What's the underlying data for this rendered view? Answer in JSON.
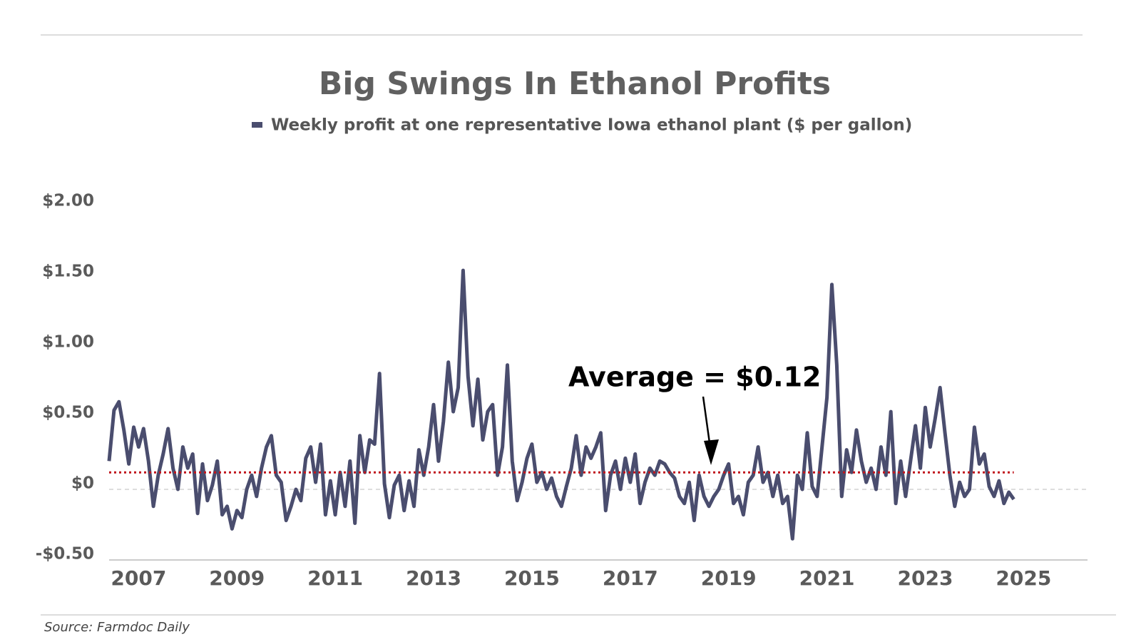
{
  "chart_data": {
    "type": "line",
    "title": "Big Swings In Ethanol Profits",
    "source": "Source: Farmdoc Daily",
    "annotation": "Average = $0.12",
    "average": 0.12,
    "average_color": "#c0141c",
    "series": [
      {
        "name": "Weekly profit at one representative Iowa ethanol plant ($ per gallon)",
        "color": "#4a4d6e",
        "values": [
          0.2,
          0.56,
          0.62,
          0.42,
          0.18,
          0.44,
          0.3,
          0.43,
          0.2,
          -0.12,
          0.1,
          0.25,
          0.43,
          0.15,
          0.0,
          0.3,
          0.15,
          0.25,
          -0.17,
          0.18,
          -0.08,
          0.03,
          0.2,
          -0.18,
          -0.12,
          -0.28,
          -0.15,
          -0.2,
          0.0,
          0.1,
          -0.05,
          0.15,
          0.3,
          0.38,
          0.1,
          0.05,
          -0.22,
          -0.12,
          0.0,
          -0.08,
          0.22,
          0.3,
          0.05,
          0.32,
          -0.18,
          0.06,
          -0.18,
          0.12,
          -0.12,
          0.2,
          -0.24,
          0.38,
          0.12,
          0.35,
          0.32,
          0.82,
          0.04,
          -0.2,
          0.03,
          0.1,
          -0.15,
          0.06,
          -0.12,
          0.28,
          0.1,
          0.3,
          0.6,
          0.2,
          0.48,
          0.9,
          0.55,
          0.72,
          1.55,
          0.8,
          0.45,
          0.78,
          0.35,
          0.55,
          0.6,
          0.1,
          0.3,
          0.88,
          0.2,
          -0.08,
          0.05,
          0.22,
          0.32,
          0.05,
          0.12,
          0.0,
          0.08,
          -0.05,
          -0.12,
          0.02,
          0.15,
          0.38,
          0.1,
          0.3,
          0.22,
          0.3,
          0.4,
          -0.15,
          0.1,
          0.2,
          0.0,
          0.22,
          0.05,
          0.25,
          -0.1,
          0.05,
          0.15,
          0.1,
          0.2,
          0.18,
          0.12,
          0.08,
          -0.05,
          -0.1,
          0.05,
          -0.22,
          0.1,
          -0.05,
          -0.12,
          -0.05,
          0.0,
          0.1,
          0.18,
          -0.1,
          -0.05,
          -0.18,
          0.05,
          0.1,
          0.3,
          0.05,
          0.12,
          -0.05,
          0.1,
          -0.1,
          -0.05,
          -0.35,
          0.1,
          0.0,
          0.4,
          0.02,
          -0.05,
          0.3,
          0.65,
          1.45,
          0.88,
          -0.05,
          0.28,
          0.12,
          0.42,
          0.2,
          0.05,
          0.15,
          0.0,
          0.3,
          0.1,
          0.55,
          -0.1,
          0.2,
          -0.05,
          0.2,
          0.45,
          0.15,
          0.58,
          0.3,
          0.5,
          0.72,
          0.4,
          0.1,
          -0.12,
          0.05,
          -0.05,
          0.0,
          0.44,
          0.18,
          0.25,
          0.02,
          -0.05,
          0.06,
          -0.1,
          -0.02,
          -0.07
        ]
      }
    ],
    "x": [
      2006.4,
      2006.5,
      2006.6,
      2006.7,
      2006.8,
      2006.9,
      2007.0,
      2007.1,
      2007.2,
      2007.3,
      2007.4,
      2007.5,
      2007.6,
      2007.7,
      2007.8,
      2007.9,
      2008.0,
      2008.1,
      2008.2,
      2008.3,
      2008.4,
      2008.5,
      2008.6,
      2008.7,
      2008.8,
      2008.9,
      2009.0,
      2009.1,
      2009.2,
      2009.3,
      2009.4,
      2009.5,
      2009.6,
      2009.7,
      2009.8,
      2009.9,
      2010.0,
      2010.1,
      2010.2,
      2010.3,
      2010.4,
      2010.5,
      2010.6,
      2010.7,
      2010.8,
      2010.9,
      2011.0,
      2011.1,
      2011.2,
      2011.3,
      2011.4,
      2011.5,
      2011.6,
      2011.7,
      2011.8,
      2011.9,
      2012.0,
      2012.1,
      2012.2,
      2012.3,
      2012.4,
      2012.5,
      2012.6,
      2012.7,
      2012.8,
      2012.9,
      2013.0,
      2013.1,
      2013.2,
      2013.3,
      2013.4,
      2013.5,
      2013.6,
      2013.7,
      2013.8,
      2013.9,
      2014.0,
      2014.1,
      2014.2,
      2014.3,
      2014.4,
      2014.5,
      2014.6,
      2014.7,
      2014.8,
      2014.9,
      2015.0,
      2015.1,
      2015.2,
      2015.3,
      2015.4,
      2015.5,
      2015.6,
      2015.7,
      2015.8,
      2015.9,
      2016.0,
      2016.1,
      2016.2,
      2016.3,
      2016.4,
      2016.5,
      2016.6,
      2016.7,
      2016.8,
      2016.9,
      2017.0,
      2017.1,
      2017.2,
      2017.3,
      2017.4,
      2017.5,
      2017.6,
      2017.7,
      2017.8,
      2017.9,
      2018.0,
      2018.1,
      2018.2,
      2018.3,
      2018.4,
      2018.5,
      2018.6,
      2018.7,
      2018.8,
      2018.9,
      2019.0,
      2019.1,
      2019.2,
      2019.3,
      2019.4,
      2019.5,
      2019.6,
      2019.7,
      2019.8,
      2019.9,
      2020.0,
      2020.1,
      2020.2,
      2020.3,
      2020.4,
      2020.5,
      2020.6,
      2020.7,
      2020.8,
      2020.9,
      2021.0,
      2021.1,
      2021.2,
      2021.3,
      2021.4,
      2021.5,
      2021.6,
      2021.7,
      2021.8,
      2021.9,
      2022.0,
      2022.1,
      2022.2,
      2022.3,
      2022.4,
      2022.5,
      2022.6,
      2022.7,
      2022.8,
      2022.9,
      2023.0,
      2023.1,
      2023.2,
      2023.3,
      2023.4,
      2023.5,
      2023.6,
      2023.7,
      2023.8,
      2023.9,
      2024.0,
      2024.1,
      2024.2,
      2024.3,
      2024.4,
      2024.5,
      2024.6,
      2024.7,
      2024.8
    ],
    "xlim": [
      2006.4,
      2026.3
    ],
    "xticks": [
      2007,
      2009,
      2011,
      2013,
      2015,
      2017,
      2019,
      2021,
      2023,
      2025
    ],
    "ylim": [
      -0.5,
      2.0
    ],
    "yticks": [
      {
        "value": -0.5,
        "label": "-$0.50"
      },
      {
        "value": 0,
        "label": "$0"
      },
      {
        "value": 0.5,
        "label": "$0.50"
      },
      {
        "value": 1.0,
        "label": "$1.00"
      },
      {
        "value": 1.5,
        "label": "$1.50"
      },
      {
        "value": 2.0,
        "label": "$2.00"
      }
    ],
    "grid": false,
    "legend": "top"
  }
}
